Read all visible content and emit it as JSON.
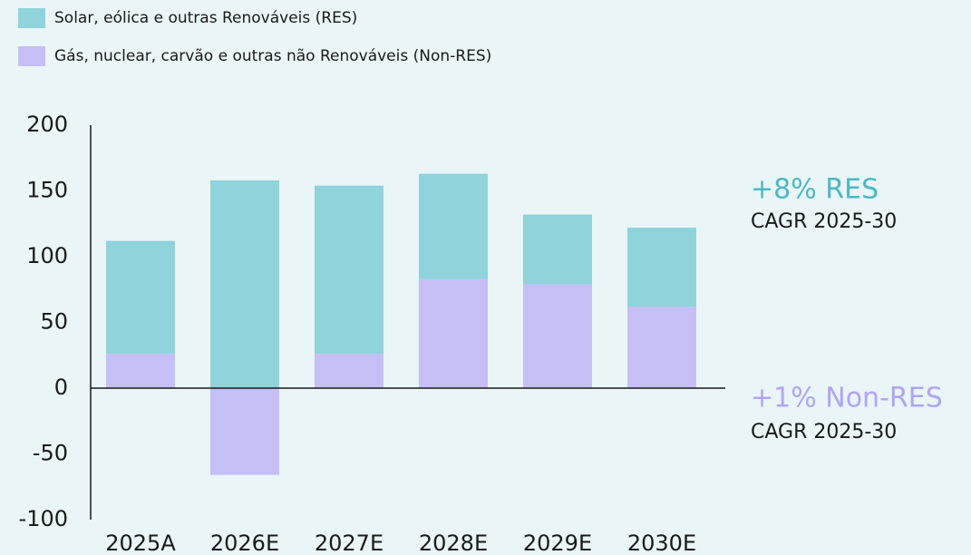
{
  "chart_data": {
    "type": "stacked_bar",
    "categories": [
      "2025A",
      "2026E",
      "2027E",
      "2028E",
      "2029E",
      "2030E"
    ],
    "series": [
      {
        "name": "Gás, nuclear, carvão e outras não Renováveis (Non-RES)",
        "color": "#c5bff5",
        "values": [
          26,
          -66,
          26,
          83,
          79,
          62
        ]
      },
      {
        "name": "Solar, eólica e outras Renováveis (RES)",
        "color": "#8fd3db",
        "values": [
          86,
          158,
          128,
          80,
          53,
          60
        ]
      }
    ],
    "ylim": [
      -100,
      200
    ],
    "yticks": [
      -100,
      -50,
      0,
      50,
      100,
      150,
      200
    ],
    "annotations": [
      {
        "text": "+8% RES",
        "color": "#4db8c4"
      },
      {
        "text": "CAGR 2025-30",
        "color": "#1a1a1a"
      },
      {
        "text": "+1% Non-RES",
        "color": "#b1a5f0"
      },
      {
        "text": "CAGR 2025-30",
        "color": "#1a1a1a"
      }
    ]
  }
}
